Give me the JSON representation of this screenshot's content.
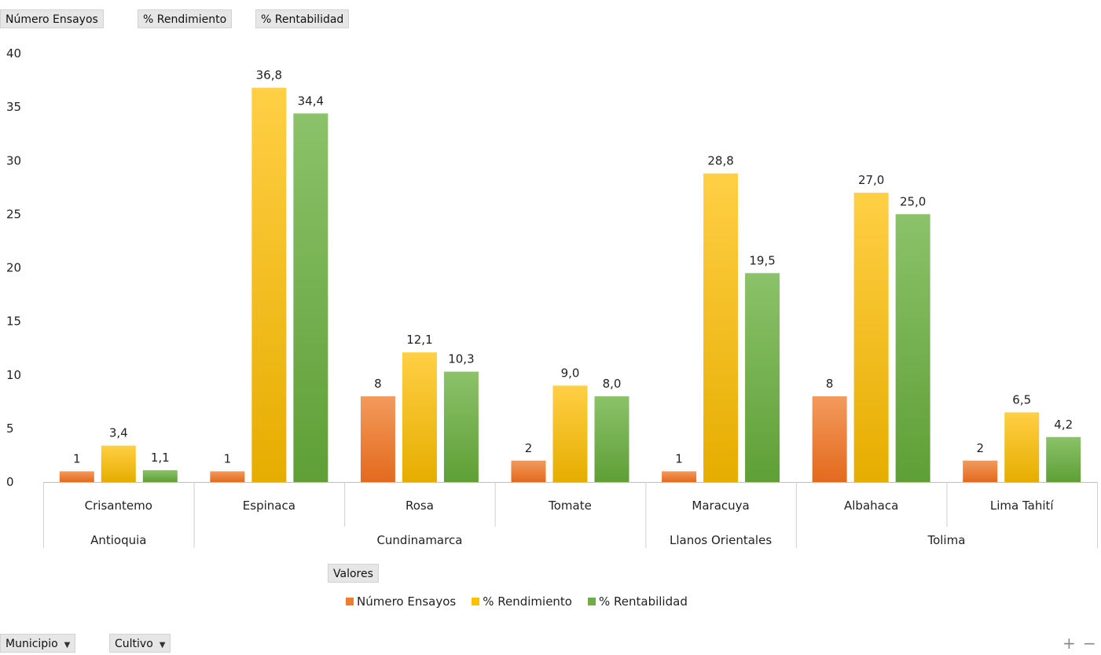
{
  "value_fields": [
    "Número Ensayos",
    "% Rendimiento",
    "% Rentabilidad"
  ],
  "values_button": "Valores",
  "axis_fields": [
    {
      "label": "Municipio",
      "icon": "dropdown-arrow-icon"
    },
    {
      "label": "Cultivo",
      "icon": "dropdown-arrow-icon"
    }
  ],
  "zoom": {
    "plus": "+",
    "minus": "−"
  },
  "colors": {
    "numero": "#ed7d31",
    "rendimiento": "#ffc000",
    "rentabilidad": "#70ad47"
  },
  "chart_data": {
    "type": "bar",
    "categories": [
      "Crisantemo",
      "Espinaca",
      "Rosa",
      "Tomate",
      "Maracuya",
      "Albahaca",
      "Lima Tahití"
    ],
    "groups": [
      {
        "label": "Antioquia",
        "span": 1
      },
      {
        "label": "Cundinamarca",
        "span": 3
      },
      {
        "label": "Llanos Orientales",
        "span": 1
      },
      {
        "label": "Tolima",
        "span": 2
      }
    ],
    "series": [
      {
        "name": "Número Ensayos",
        "values": [
          1,
          1,
          8,
          2,
          1,
          8,
          2
        ],
        "labels": [
          "1",
          "1",
          "8",
          "2",
          "1",
          "8",
          "2"
        ]
      },
      {
        "name": "% Rendimiento",
        "values": [
          3.4,
          36.8,
          12.1,
          9.0,
          28.8,
          27.0,
          6.5
        ],
        "labels": [
          "3,4",
          "36,8",
          "12,1",
          "9,0",
          "28,8",
          "27,0",
          "6,5"
        ]
      },
      {
        "name": "% Rentabilidad",
        "values": [
          1.1,
          34.4,
          10.3,
          8.0,
          19.5,
          25.0,
          4.2
        ],
        "labels": [
          "1,1",
          "34,4",
          "10,3",
          "8,0",
          "19,5",
          "25,0",
          "4,2"
        ]
      }
    ],
    "yticks": [
      "0",
      "5",
      "10",
      "15",
      "20",
      "25",
      "30",
      "35",
      "40"
    ],
    "ylim": [
      0,
      40
    ],
    "legend_position": "bottom"
  }
}
